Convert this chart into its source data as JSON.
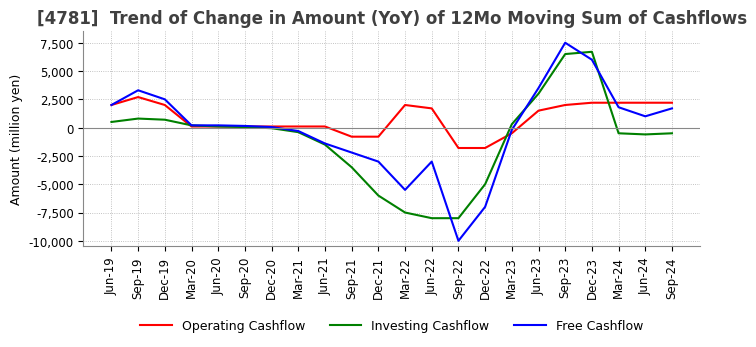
{
  "title": "[4781]  Trend of Change in Amount (YoY) of 12Mo Moving Sum of Cashflows",
  "ylabel": "Amount (million yen)",
  "ylim": [
    -10500,
    8500
  ],
  "yticks": [
    -10000,
    -7500,
    -5000,
    -2500,
    0,
    2500,
    5000,
    7500
  ],
  "x_labels": [
    "Jun-19",
    "Sep-19",
    "Dec-19",
    "Mar-20",
    "Jun-20",
    "Sep-20",
    "Dec-20",
    "Mar-21",
    "Jun-21",
    "Sep-21",
    "Dec-21",
    "Mar-22",
    "Jun-22",
    "Sep-22",
    "Dec-22",
    "Mar-23",
    "Jun-23",
    "Sep-23",
    "Dec-23",
    "Mar-24",
    "Jun-24",
    "Sep-24"
  ],
  "operating": [
    2000,
    2700,
    2000,
    100,
    100,
    100,
    100,
    100,
    100,
    -800,
    -800,
    2000,
    1700,
    -1800,
    -1800,
    -500,
    1500,
    2000,
    2200,
    2200,
    2200,
    2200
  ],
  "investing": [
    500,
    800,
    700,
    200,
    100,
    50,
    -50,
    -400,
    -1500,
    -3500,
    -6000,
    -7500,
    -8000,
    -8000,
    -5000,
    300,
    3000,
    6500,
    6700,
    -500,
    -600,
    -500
  ],
  "free": [
    2000,
    3300,
    2500,
    200,
    200,
    150,
    50,
    -300,
    -1400,
    -2200,
    -3000,
    -5500,
    -3000,
    -10000,
    -7000,
    -200,
    3500,
    7500,
    6000,
    1800,
    1000,
    1700
  ],
  "op_color": "#ff0000",
  "inv_color": "#008000",
  "free_color": "#0000ff",
  "bg_color": "#ffffff",
  "grid_color": "#b0b0b0",
  "grid_style": "dotted",
  "title_color": "#404040",
  "title_fontsize": 12,
  "label_fontsize": 9,
  "tick_fontsize": 8.5
}
